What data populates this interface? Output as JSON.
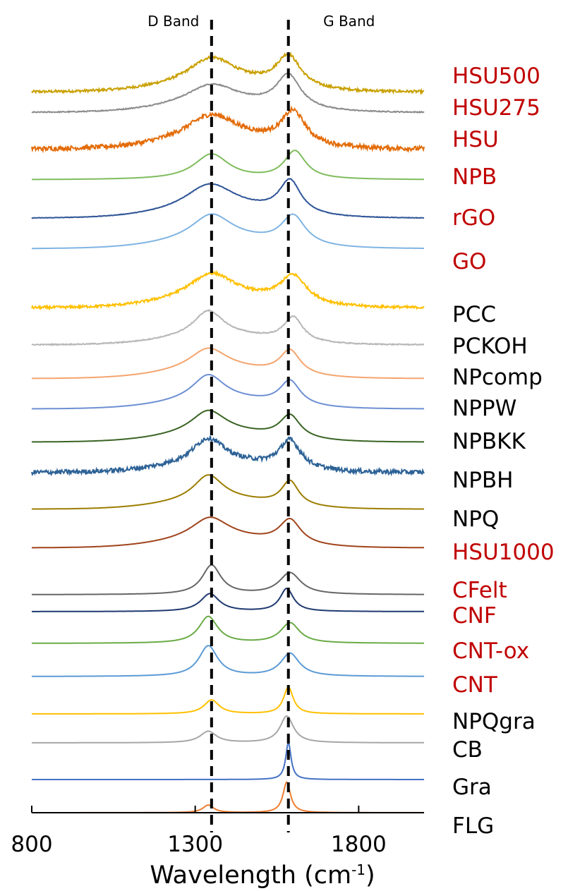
{
  "chart_data": {
    "type": "line",
    "xlabel": "Wavelength (cm",
    "xlabel_superscript": "-1",
    "xlabel_suffix": ")",
    "xlim": [
      800,
      2000
    ],
    "xticks": [
      800,
      1300,
      1800
    ],
    "xtick_labels": [
      "800",
      "1300",
      "1800"
    ],
    "grid": false,
    "legend": "right, inline labels",
    "reference_lines": [
      {
        "label": "D Band",
        "x": 1350
      },
      {
        "label": "G Band",
        "x": 1585
      }
    ],
    "series": [
      {
        "name": "HSU500",
        "label_color": "#c00000",
        "color": "#c9a000",
        "d_peak": 1350,
        "g_peak": 1585,
        "d_width": 85,
        "g_width": 45,
        "d_height": 1.0,
        "g_height": 1.25,
        "noise": 0.05,
        "background": "broad"
      },
      {
        "name": "HSU275",
        "label_color": "#c00000",
        "color": "#8c8c8c",
        "d_peak": 1350,
        "g_peak": 1585,
        "d_width": 90,
        "g_width": 45,
        "d_height": 0.75,
        "g_height": 1.3,
        "noise": 0.02,
        "background": "broad"
      },
      {
        "name": "HSU",
        "label_color": "#c00000",
        "color": "#e36c09",
        "d_peak": 1350,
        "g_peak": 1600,
        "d_width": 95,
        "g_width": 45,
        "d_height": 1.0,
        "g_height": 1.3,
        "noise": 0.09,
        "background": "broad"
      },
      {
        "name": "NPB",
        "label_color": "#c00000",
        "color": "#7fbc5c",
        "d_peak": 1350,
        "g_peak": 1605,
        "d_width": 65,
        "g_width": 40,
        "d_height": 1.0,
        "g_height": 1.1,
        "noise": 0.0,
        "background": "none"
      },
      {
        "name": "rGO",
        "label_color": "#c00000",
        "color": "#2f5597",
        "d_peak": 1345,
        "g_peak": 1590,
        "d_width": 90,
        "g_width": 40,
        "d_height": 1.0,
        "g_height": 1.3,
        "noise": 0.01,
        "background": "broad"
      },
      {
        "name": "GO",
        "label_color": "#c00000",
        "color": "#7fb4e3",
        "d_peak": 1350,
        "g_peak": 1600,
        "d_width": 75,
        "g_width": 45,
        "d_height": 1.0,
        "g_height": 1.15,
        "noise": 0.0,
        "background": "broad"
      },
      {
        "name": "PCC",
        "label_color": "#000000",
        "color": "#ffc000",
        "d_peak": 1350,
        "g_peak": 1600,
        "d_width": 85,
        "g_width": 50,
        "d_height": 1.0,
        "g_height": 1.1,
        "noise": 0.05,
        "background": "broad"
      },
      {
        "name": "PCKOH",
        "label_color": "#000000",
        "color": "#b7b7b7",
        "d_peak": 1340,
        "g_peak": 1600,
        "d_width": 55,
        "g_width": 35,
        "d_height": 1.0,
        "g_height": 0.95,
        "noise": 0.02,
        "background": "broad"
      },
      {
        "name": "NPcomp",
        "label_color": "#000000",
        "color": "#f4a46e",
        "d_peak": 1340,
        "g_peak": 1590,
        "d_width": 70,
        "g_width": 38,
        "d_height": 0.85,
        "g_height": 0.95,
        "noise": 0.0,
        "background": "broad"
      },
      {
        "name": "NPPW",
        "label_color": "#000000",
        "color": "#6d8fd3",
        "d_peak": 1340,
        "g_peak": 1590,
        "d_width": 60,
        "g_width": 38,
        "d_height": 1.0,
        "g_height": 0.95,
        "noise": 0.0,
        "background": "broad"
      },
      {
        "name": "NPBKK",
        "label_color": "#000000",
        "color": "#3a6424",
        "d_peak": 1340,
        "g_peak": 1590,
        "d_width": 65,
        "g_width": 38,
        "d_height": 0.9,
        "g_height": 0.9,
        "noise": 0.0,
        "background": "broad"
      },
      {
        "name": "NPBH",
        "label_color": "#000000",
        "color": "#2d6296",
        "d_peak": 1340,
        "g_peak": 1590,
        "d_width": 60,
        "g_width": 40,
        "d_height": 1.0,
        "g_height": 1.1,
        "noise": 0.09,
        "background": "broad"
      },
      {
        "name": "NPQ",
        "label_color": "#000000",
        "color": "#9c7d00",
        "d_peak": 1340,
        "g_peak": 1590,
        "d_width": 55,
        "g_width": 32,
        "d_height": 1.0,
        "g_height": 0.95,
        "noise": 0.0,
        "background": "broad"
      },
      {
        "name": "HSU1000",
        "label_color": "#c00000",
        "color": "#a0441c",
        "d_peak": 1345,
        "g_peak": 1590,
        "d_width": 70,
        "g_width": 40,
        "d_height": 0.85,
        "g_height": 0.95,
        "noise": 0.0,
        "background": "broad"
      },
      {
        "name": "CFelt",
        "label_color": "#c00000",
        "color": "#666666",
        "d_peak": 1350,
        "g_peak": 1590,
        "d_width": 35,
        "g_width": 40,
        "d_height": 1.15,
        "g_height": 0.85,
        "noise": 0.0,
        "background": "none"
      },
      {
        "name": "CNF",
        "label_color": "#c00000",
        "color": "#1f3a70",
        "d_peak": 1345,
        "g_peak": 1580,
        "d_width": 35,
        "g_width": 25,
        "d_height": 0.7,
        "g_height": 0.9,
        "noise": 0.0,
        "background": "none"
      },
      {
        "name": "CNT-ox",
        "label_color": "#c00000",
        "color": "#6aab46",
        "d_peak": 1340,
        "g_peak": 1590,
        "d_width": 35,
        "g_width": 35,
        "d_height": 1.05,
        "g_height": 0.8,
        "noise": 0.0,
        "background": "none"
      },
      {
        "name": "CNT",
        "label_color": "#c00000",
        "color": "#5b9bd5",
        "d_peak": 1340,
        "g_peak": 1590,
        "d_width": 35,
        "g_width": 35,
        "d_height": 1.2,
        "g_height": 0.9,
        "noise": 0.0,
        "background": "none"
      },
      {
        "name": "NPQgra",
        "label_color": "#000000",
        "color": "#ffc000",
        "d_peak": 1350,
        "g_peak": 1585,
        "d_width": 28,
        "g_width": 18,
        "d_height": 0.55,
        "g_height": 1.05,
        "noise": 0.0,
        "background": "none"
      },
      {
        "name": "CB",
        "label_color": "#000000",
        "color": "#a6a6a6",
        "d_peak": 1340,
        "g_peak": 1580,
        "d_width": 30,
        "g_width": 25,
        "d_height": 0.45,
        "g_height": 1.05,
        "noise": 0.0,
        "background": "none"
      },
      {
        "name": "Gra",
        "label_color": "#000000",
        "color": "#4472c4",
        "d_peak": 1350,
        "g_peak": 1585,
        "d_width": 20,
        "g_width": 10,
        "d_height": 0.0,
        "g_height": 1.45,
        "noise": 0.0,
        "background": "none"
      },
      {
        "name": "FLG",
        "label_color": "#000000",
        "color": "#ed7d31",
        "d_peak": 1340,
        "g_peak": 1580,
        "d_width": 20,
        "g_width": 14,
        "d_height": 0.3,
        "g_height": 1.2,
        "noise": 0.0,
        "background": "none"
      }
    ]
  }
}
